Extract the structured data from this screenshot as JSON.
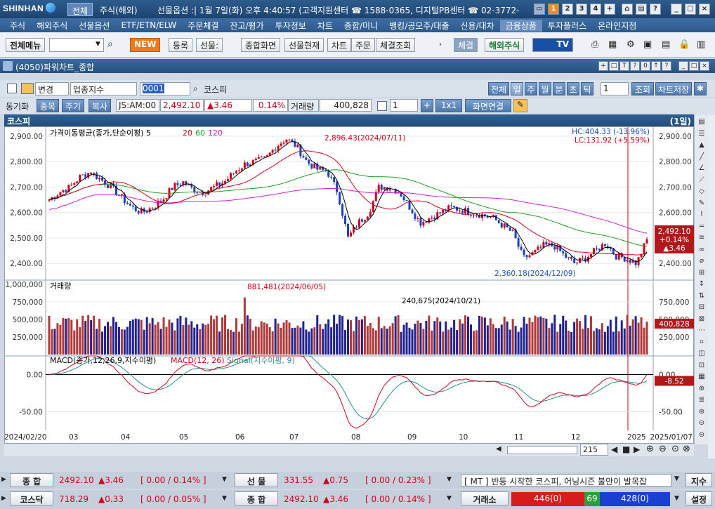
{
  "app": {
    "brand": "SHINHAN",
    "tabs": [
      "전체",
      "주식(해외)"
    ],
    "info": "선물옵션 :| 1월 7일(화) 오후 4:40:57 (고객지원센터 ☎ 1588-0365, 디지털PB센터 ☎ 02-3772-",
    "window_nums": [
      "1",
      "2",
      "3",
      "4",
      "+"
    ]
  },
  "menu": [
    "주식",
    "해외주식",
    "선물옵션",
    "ETF/ETN/ELW",
    "주문체결",
    "잔고/평가",
    "투자정보",
    "차트",
    "종합/미니",
    "뱅킹/공모주/대출",
    "신용/대차",
    "금융상품",
    "투자플러스",
    "온라인지점"
  ],
  "menu_selected": "금융상품",
  "toolbar": {
    "all_menu": "전체메뉴",
    "new": "NEW",
    "register": "등록",
    "futures_sel": "선물:",
    "combined": "종합화면",
    "fut_now": "선물현재",
    "chart": "차트",
    "order": "주문",
    "exec": "체결조회",
    "exec2": "체결",
    "overseas": "해외주식",
    "tv": "TV"
  },
  "window": {
    "title": "(4050)파워차트_종합",
    "btn_all": "전체",
    "periods": [
      "일",
      "주",
      "월",
      "분",
      "초",
      "틱"
    ],
    "period_num": "1",
    "lookup": "조회",
    "save": "차트저장"
  },
  "row1": {
    "change": "변경",
    "index_type": "업종지수",
    "code": "0001",
    "name": "코스피"
  },
  "row2": {
    "sync": "동기화",
    "stock": "종목",
    "cycle": "주기",
    "copy": "복사",
    "ticker": "JS:AM:00",
    "price": "2,492.10",
    "change": "▲3.46",
    "pct": "0.14%",
    "vol_label": "거래량",
    "volume": "400,828",
    "count": "1",
    "ratio": "1x1",
    "link": "화면연결"
  },
  "chart": {
    "title": "코스피",
    "period_badge": "(1일)",
    "ma_legend": "가격이동평균(종가,단순이평) 5",
    "ma_periods": [
      "20",
      "60",
      "120"
    ],
    "hc": "HC:404.33 (-13.96%)",
    "lc": "LC:131.92 (+5.59%)",
    "high_ann": "2,896.43(2024/07/11)",
    "low_ann": "2,360.18(2024/12/09)",
    "vol_legend": "거래량",
    "vol_high_ann": "881,481(2024/06/05)",
    "vol_mid_ann": "240,675(2024/10/21)",
    "macd_legend": "MACD(종가,12,26,9,지수이평)",
    "macd_label": "MACD(12, 26)",
    "signal_label": "Signal(지수이평, 9)",
    "last_price": "2,492.10",
    "last_pct": "+0.14%",
    "last_chg": "▲3.46",
    "last_vol": "400,828",
    "last_macd": "-8.52",
    "price_ticks": [
      "2,900.00",
      "2,800.00",
      "2,700.00",
      "2,600.00",
      "2,500.00",
      "2,400.00"
    ],
    "vol_ticks": [
      "1,000,000",
      "750,000",
      "500,000",
      "250,000"
    ],
    "vol_ticks_r": [
      "750,000",
      "500,000",
      "250,000"
    ],
    "macd_ticks": [
      "0.00",
      "-50.00"
    ],
    "macd_ticks_r": [
      "0.00",
      "-50.00"
    ],
    "date_start": "2024/02/20",
    "date_end": "2025/01/07",
    "months": [
      "03",
      "04",
      "05",
      "06",
      "07",
      "08",
      "09",
      "10",
      "11",
      "12",
      "2025"
    ],
    "scroll_count": "215"
  },
  "bottom": {
    "r1": [
      {
        "label": "종 합",
        "price": "2492.10",
        "chg": "▲3.46",
        "rng": "[ 0.00 / 0.14% ]"
      },
      {
        "label": "선 물",
        "price": "331.55",
        "chg": "▲0.75",
        "rng": "[ 0.00 / 0.23% ]"
      }
    ],
    "news": "[ MT ] 반등 시작한 코스피, 어닝시즌 불안이 발목잡",
    "news_btn": "지수",
    "r2": [
      {
        "label": "코스닥",
        "price": "718.29",
        "chg": "▲0.33",
        "rng": "[ 0.00 / 0.05% ]"
      },
      {
        "label": "종 합",
        "price": "2492.10",
        "chg": "▲3.46",
        "rng": "[ 0.00 / 0.14% ]"
      }
    ],
    "trade_label": "거래소",
    "up": "446(0)",
    "flat": "69",
    "down": "428(0)",
    "settings": "설정"
  },
  "chart_data": {
    "type": "line",
    "title": "코스피",
    "x_range": [
      "2024/02/20",
      "2025/01/07"
    ],
    "close_approx": [
      2650,
      2680,
      2700,
      2740,
      2760,
      2730,
      2700,
      2660,
      2620,
      2600,
      2620,
      2650,
      2700,
      2720,
      2690,
      2680,
      2700,
      2720,
      2760,
      2790,
      2800,
      2810,
      2860,
      2890,
      2860,
      2800,
      2770,
      2760,
      2680,
      2500,
      2560,
      2600,
      2700,
      2700,
      2680,
      2620,
      2560,
      2580,
      2600,
      2620,
      2610,
      2600,
      2590,
      2580,
      2550,
      2520,
      2420,
      2440,
      2470,
      2470,
      2430,
      2400,
      2420,
      2450,
      2480,
      2430,
      2420,
      2400,
      2492
    ],
    "ylim": [
      2340,
      2930
    ],
    "volume_high": 881481,
    "macd_ylim": [
      -75,
      25
    ]
  }
}
